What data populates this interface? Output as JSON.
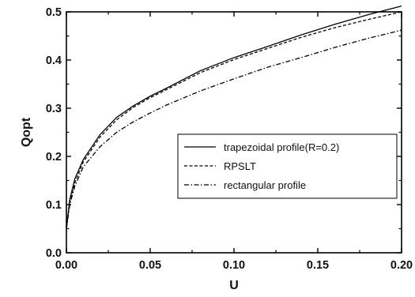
{
  "chart_data": {
    "type": "line",
    "title": "",
    "xlabel": "U",
    "ylabel": "Qopt",
    "xlim": [
      0.0,
      0.2
    ],
    "ylim": [
      0.0,
      0.5
    ],
    "xticks": [
      0.0,
      0.05,
      0.1,
      0.15,
      0.2
    ],
    "xtick_labels": [
      "0.00",
      "0.05",
      "0.10",
      "0.15",
      "0.20"
    ],
    "yticks": [
      0.0,
      0.1,
      0.2,
      0.3,
      0.4,
      0.5
    ],
    "ytick_labels": [
      "0.0",
      "0.1",
      "0.2",
      "0.3",
      "0.4",
      "0.5"
    ],
    "grid": false,
    "legend_position": "center-right",
    "series": [
      {
        "name": "trapezoidal profile(R=0.2)",
        "line_style": "solid",
        "color": "#000000",
        "x": [
          0.0,
          0.002,
          0.005,
          0.01,
          0.02,
          0.03,
          0.04,
          0.05,
          0.06,
          0.08,
          0.1,
          0.12,
          0.14,
          0.16,
          0.18,
          0.2
        ],
        "y": [
          0.05,
          0.11,
          0.153,
          0.193,
          0.245,
          0.281,
          0.305,
          0.325,
          0.342,
          0.378,
          0.405,
          0.428,
          0.452,
          0.474,
          0.494,
          0.512
        ]
      },
      {
        "name": "RPSLT",
        "line_style": "dashed",
        "color": "#000000",
        "x": [
          0.0,
          0.002,
          0.005,
          0.01,
          0.02,
          0.03,
          0.04,
          0.05,
          0.06,
          0.08,
          0.1,
          0.12,
          0.14,
          0.16,
          0.18,
          0.2
        ],
        "y": [
          0.05,
          0.105,
          0.145,
          0.188,
          0.24,
          0.276,
          0.302,
          0.322,
          0.339,
          0.374,
          0.401,
          0.424,
          0.447,
          0.467,
          0.484,
          0.5
        ]
      },
      {
        "name": "rectangular profile",
        "line_style": "dashdot",
        "color": "#000000",
        "x": [
          0.0,
          0.002,
          0.005,
          0.01,
          0.02,
          0.03,
          0.04,
          0.05,
          0.06,
          0.08,
          0.1,
          0.12,
          0.14,
          0.16,
          0.18,
          0.2
        ],
        "y": [
          0.05,
          0.1,
          0.138,
          0.178,
          0.22,
          0.25,
          0.272,
          0.29,
          0.307,
          0.336,
          0.361,
          0.385,
          0.405,
          0.426,
          0.445,
          0.462
        ]
      }
    ]
  }
}
